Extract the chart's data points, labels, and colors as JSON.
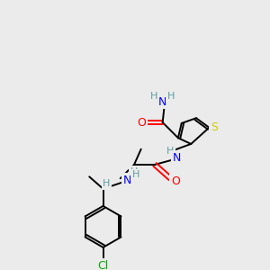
{
  "bg_color": "#ebebeb",
  "atom_colors": {
    "C": "#000000",
    "H": "#5f9ea0",
    "N": "#0000ff",
    "O": "#ff0000",
    "S": "#cccc00",
    "Cl": "#00aa00"
  },
  "bond_color": "#000000",
  "font_size": 8,
  "figsize": [
    3.0,
    3.0
  ],
  "dpi": 100,
  "lw": 1.4
}
